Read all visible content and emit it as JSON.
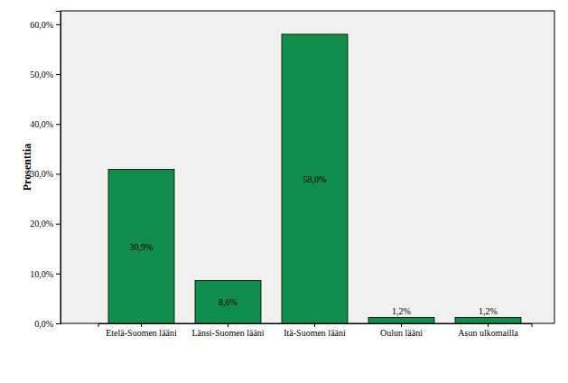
{
  "chart_data": {
    "type": "bar",
    "y_label": "Prosenttia",
    "categories": [
      "Etelä-Suomen lääni",
      "Länsi-Suomen lääni",
      "Itä-Suomen lääni",
      "Oulun lääni",
      "Asun ulkomailla"
    ],
    "values": [
      30.9,
      8.6,
      58.0,
      1.2,
      1.2
    ],
    "value_labels": [
      "30,9%",
      "8,6%",
      "58,0%",
      "1,2%",
      "1,2%"
    ],
    "color": "#118d4b",
    "ylim": [
      0,
      62.7
    ],
    "yticks": [
      {
        "value": 0,
        "label": "0,0%"
      },
      {
        "value": 10,
        "label": "10,0%"
      },
      {
        "value": 20,
        "label": "20,0%"
      },
      {
        "value": 30,
        "label": "30,0%"
      },
      {
        "value": 40,
        "label": "40,0%"
      },
      {
        "value": 50,
        "label": "50,0%"
      },
      {
        "value": 60,
        "label": "60,0%"
      }
    ],
    "data_labels": true,
    "grid": false
  }
}
